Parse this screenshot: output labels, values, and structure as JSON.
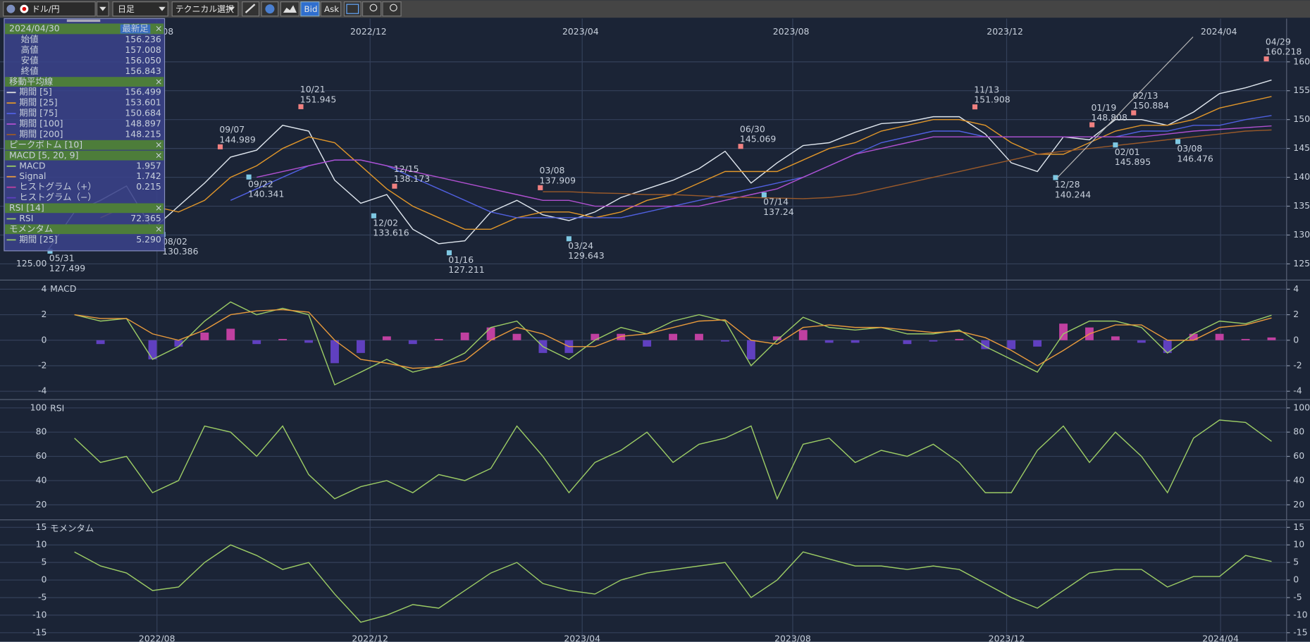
{
  "toolbar": {
    "pair": "ドル/円",
    "period": "日足",
    "technical": "テクニカル選択",
    "bid": "Bid",
    "ask": "Ask"
  },
  "info_panel": {
    "date": "2024/04/30",
    "latest": "最新足",
    "close": "×",
    "rows": [
      {
        "label": "始値",
        "value": "156.236"
      },
      {
        "label": "高値",
        "value": "157.008"
      },
      {
        "label": "安値",
        "value": "156.050"
      },
      {
        "label": "終値",
        "value": "156.843"
      },
      {
        "header": "移動平均線"
      },
      {
        "label": "期間 [5]",
        "value": "156.499",
        "color": "#e0e0e0"
      },
      {
        "label": "期間 [25]",
        "value": "153.601",
        "color": "#e0962a"
      },
      {
        "label": "期間 [75]",
        "value": "150.684",
        "color": "#5060e0"
      },
      {
        "label": "期間 [100]",
        "value": "148.897",
        "color": "#b050d0"
      },
      {
        "label": "期間 [200]",
        "value": "148.215",
        "color": "#9a5a2a"
      },
      {
        "header": "ピークボトム [10]"
      },
      {
        "header": "MACD [5, 20, 9]"
      },
      {
        "label": "MACD",
        "value": "1.957",
        "color": "#9ccc65"
      },
      {
        "label": "Signal",
        "value": "1.742",
        "color": "#e89a3c"
      },
      {
        "label": "ヒストグラム（+）",
        "value": "0.215",
        "color": "#c040a0"
      },
      {
        "label": "ヒストグラム（−）",
        "color": "#6040c0"
      },
      {
        "header": "RSI [14]"
      },
      {
        "label": "RSI",
        "value": "72.365",
        "color": "#9ccc65"
      },
      {
        "header": "モメンタム"
      },
      {
        "label": "期間 [25]",
        "value": "5.290",
        "color": "#9ccc65"
      }
    ]
  },
  "chart_data": [
    {
      "type": "line",
      "xlim": [
        0,
        47
      ],
      "ylim": [
        122.2,
        167.5
      ],
      "yticks": [
        125,
        130,
        135,
        140,
        145,
        150,
        155,
        160
      ],
      "left_label": "125.00",
      "xticks": [
        {
          "value": 4.17,
          "label": "2022/08"
        },
        {
          "value": 12.36,
          "label": "2022/12"
        },
        {
          "value": 20.51,
          "label": "2023/04"
        },
        {
          "value": 28.6,
          "label": "2023/08"
        },
        {
          "value": 36.82,
          "label": "2023/12"
        },
        {
          "value": 45.04,
          "label": "2024/04"
        }
      ],
      "series": [
        {
          "color": "#dfe6ee",
          "values": [
            127.5,
            134,
            136,
            138.5,
            131,
            135,
            139,
            143.5,
            144.7,
            149,
            148,
            139.5,
            135.5,
            137,
            131,
            128.5,
            129,
            134,
            136,
            133.5,
            132.5,
            134,
            136.5,
            138,
            139.5,
            141.5,
            144.5,
            139,
            142.5,
            145.5,
            146,
            147.8,
            149.3,
            149.6,
            150.5,
            150.5,
            147.5,
            142.5,
            141,
            147,
            146.5,
            150,
            150,
            149,
            151.3,
            154.5,
            155.5,
            156.843
          ]
        },
        {
          "color": "#e0962a",
          "values": [
            null,
            null,
            133,
            135,
            135,
            134,
            136,
            140,
            142,
            145,
            147,
            146,
            142,
            138,
            135,
            133,
            131,
            131,
            133,
            134,
            134,
            133,
            134,
            136,
            137,
            139,
            141,
            141,
            141,
            143,
            145,
            146,
            148,
            149,
            150,
            150,
            149,
            146,
            144,
            144,
            146,
            148,
            149,
            149,
            150,
            152,
            153,
            154
          ]
        },
        {
          "color": "#5060e0",
          "values": [
            null,
            null,
            null,
            null,
            null,
            null,
            null,
            136,
            138,
            140,
            142,
            143,
            143,
            142,
            140,
            138,
            136,
            134,
            133,
            133,
            133,
            133,
            133,
            134,
            135,
            136,
            137,
            138,
            139,
            140,
            142,
            144,
            146,
            147,
            148,
            148,
            147,
            147,
            147,
            147,
            147,
            147,
            148,
            148,
            149,
            149,
            150,
            150.7
          ]
        },
        {
          "color": "#b050d0",
          "values": [
            null,
            null,
            null,
            null,
            null,
            null,
            null,
            null,
            140,
            141,
            142,
            143,
            143,
            142,
            141,
            140,
            139,
            138,
            137,
            136,
            136,
            135,
            135,
            135,
            135,
            135,
            136,
            137,
            138,
            140,
            142,
            144,
            145,
            146,
            147,
            147,
            147,
            147,
            147,
            147,
            147,
            147,
            147,
            147.5,
            148,
            148.3,
            148.6,
            148.9
          ]
        },
        {
          "color": "#9a5a2a",
          "values": [
            null,
            null,
            null,
            null,
            null,
            null,
            null,
            null,
            null,
            null,
            null,
            null,
            null,
            null,
            null,
            null,
            null,
            null,
            null,
            137.5,
            137.5,
            137.3,
            137.2,
            137,
            137,
            136.8,
            136.6,
            136.5,
            136.4,
            136.3,
            136.5,
            137,
            138,
            139,
            140,
            141,
            142,
            143,
            144,
            144.5,
            145,
            145.5,
            146,
            146.5,
            147,
            147.5,
            148,
            148.2
          ]
        }
      ],
      "peaks": [
        {
          "date": "09/07",
          "x": 6.6,
          "value": 144.989
        },
        {
          "date": "10/21",
          "x": 9.7,
          "value": 151.945
        },
        {
          "date": "12/15",
          "x": 13.3,
          "value": 138.173
        },
        {
          "date": "03/08",
          "x": 18.9,
          "value": 137.909
        },
        {
          "date": "06/30",
          "x": 26.6,
          "value": 145.069
        },
        {
          "date": "11/13",
          "x": 35.6,
          "value": 151.908
        },
        {
          "date": "01/19",
          "x": 40.1,
          "value": 148.808
        },
        {
          "date": "02/13",
          "x": 41.7,
          "value": 150.884
        },
        {
          "date": "04/29",
          "x": 46.8,
          "value": 160.218
        }
      ],
      "bottoms": [
        {
          "date": "05/31",
          "x": 0.06,
          "value": 127.499
        },
        {
          "date": "08/02",
          "x": 4.4,
          "value": 130.386
        },
        {
          "date": "09/22",
          "x": 7.7,
          "value": 140.341
        },
        {
          "date": "12/02",
          "x": 12.5,
          "value": 133.616
        },
        {
          "date": "01/16",
          "x": 15.4,
          "value": 127.211
        },
        {
          "date": "03/24",
          "x": 20.0,
          "value": 129.643
        },
        {
          "date": "07/14",
          "x": 27.5,
          "value": 137.24
        },
        {
          "date": "12/28",
          "x": 38.7,
          "value": 140.244
        },
        {
          "date": "02/01",
          "x": 41.0,
          "value": 145.895
        },
        {
          "date": "03/08",
          "x": 43.4,
          "value": 146.476
        }
      ],
      "peak_color": "#f08080",
      "bottom_color": "#7ec8e3"
    },
    {
      "type": "line",
      "label": "MACD",
      "xlim": [
        0,
        47
      ],
      "ylim": [
        -4.65,
        4.65
      ],
      "yticks": [
        -4,
        -2,
        0,
        2,
        4
      ],
      "series": [
        {
          "type": "bar",
          "color": "#c040a0",
          "negative_color": "#6040c0",
          "values": [
            null,
            0,
            -0.3,
            0,
            -1.5,
            -0.5,
            0.6,
            0.9,
            -0.3,
            0.1,
            -0.2,
            -1.8,
            -1,
            0.3,
            -0.3,
            0.1,
            0.6,
            1,
            0.5,
            -1,
            -1,
            0.5,
            0.5,
            -0.5,
            0.5,
            0.5,
            -0.1,
            -1.5,
            0.3,
            0.8,
            -0.2,
            -0.2,
            0,
            -0.3,
            -0.1,
            0.1,
            -0.7,
            -0.7,
            -0.5,
            1.3,
            1,
            0.3,
            -0.2,
            -1,
            0.5,
            0.5,
            0.1,
            0.215
          ]
        },
        {
          "color": "#9ccc65",
          "values": [
            null,
            2,
            1.5,
            1.7,
            -1.5,
            -0.5,
            1.5,
            3,
            2,
            2.5,
            2,
            -3.5,
            -2.5,
            -1.5,
            -2.5,
            -2,
            -1,
            1,
            1.5,
            -0.5,
            -1.5,
            0,
            1,
            0.5,
            1.5,
            2,
            1.5,
            -2,
            0,
            1.8,
            1,
            0.8,
            1,
            0.5,
            0.5,
            0.8,
            -0.5,
            -1.5,
            -2.5,
            0.5,
            1.5,
            1.5,
            1,
            -1,
            0.5,
            1.5,
            1.3,
            1.957
          ]
        },
        {
          "color": "#e89a3c",
          "values": [
            null,
            2,
            1.7,
            1.7,
            0.5,
            0,
            0.8,
            2,
            2.3,
            2.4,
            2.2,
            0,
            -1.5,
            -1.8,
            -2.2,
            -2.1,
            -1.6,
            0,
            1,
            0.5,
            -0.5,
            -0.5,
            0.3,
            0.5,
            1,
            1.5,
            1.6,
            0,
            -0.3,
            1,
            1.2,
            1,
            1,
            0.8,
            0.6,
            0.7,
            0.2,
            -0.8,
            -2,
            -0.8,
            0.5,
            1.2,
            1.2,
            0,
            0,
            1,
            1.2,
            1.742
          ]
        }
      ]
    },
    {
      "type": "line",
      "label": "RSI",
      "xlim": [
        0,
        47
      ],
      "ylim": [
        7.6,
        106.2
      ],
      "yticks": [
        20,
        40,
        60,
        80,
        100
      ],
      "series": [
        {
          "color": "#9ccc65",
          "values": [
            null,
            75,
            55,
            60,
            30,
            40,
            85,
            80,
            60,
            85,
            45,
            25,
            35,
            40,
            30,
            45,
            40,
            50,
            85,
            60,
            30,
            55,
            65,
            80,
            55,
            70,
            75,
            85,
            25,
            70,
            75,
            55,
            65,
            60,
            70,
            55,
            30,
            30,
            65,
            85,
            55,
            80,
            60,
            30,
            75,
            90,
            88,
            72.365
          ]
        }
      ]
    },
    {
      "type": "line",
      "label": "モメンタム",
      "xlim": [
        0,
        47
      ],
      "ylim": [
        -17.6,
        16.9
      ],
      "yticks": [
        -15,
        -10,
        -5,
        0,
        5,
        10,
        15
      ],
      "xticks": [
        {
          "value": 4.17,
          "label": "2022/08"
        },
        {
          "value": 12.36,
          "label": "2022/12"
        },
        {
          "value": 20.51,
          "label": "2023/04"
        },
        {
          "value": 28.6,
          "label": "2023/08"
        },
        {
          "value": 36.82,
          "label": "2023/12"
        },
        {
          "value": 45.04,
          "label": "2024/04"
        }
      ],
      "series": [
        {
          "color": "#9ccc65",
          "values": [
            null,
            8,
            4,
            2,
            -3,
            -2,
            5,
            10,
            7,
            3,
            5,
            -4,
            -12,
            -10,
            -7,
            -8,
            -3,
            2,
            5,
            -1,
            -3,
            -4,
            0,
            2,
            3,
            4,
            5,
            -5,
            0,
            8,
            6,
            4,
            4,
            3,
            4,
            3,
            -1,
            -5,
            -8,
            -3,
            2,
            3,
            3,
            -2,
            1,
            1,
            7,
            5.29
          ]
        }
      ]
    }
  ]
}
